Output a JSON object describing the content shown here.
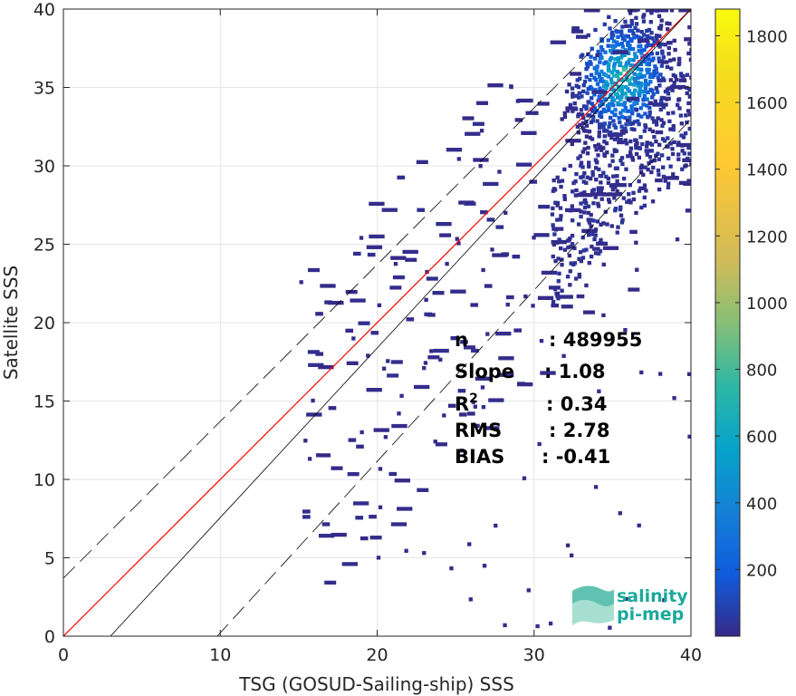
{
  "chart_data": {
    "type": "heatmap",
    "xlabel": "TSG (GOSUD-Sailing-ship) SSS",
    "ylabel": "Satellite SSS",
    "xlim": [
      0,
      40
    ],
    "ylim": [
      0,
      40
    ],
    "xticks": [
      "0",
      "10",
      "20",
      "30",
      "40"
    ],
    "yticks": [
      "0",
      "5",
      "10",
      "15",
      "20",
      "25",
      "30",
      "35",
      "40"
    ],
    "grid": true,
    "colorbar": {
      "range": [
        0,
        1880
      ],
      "ticks": [
        "200",
        "400",
        "600",
        "800",
        "1000",
        "1200",
        "1400",
        "1600",
        "1800"
      ],
      "colormap": "parula"
    },
    "lines": [
      {
        "type": "identity",
        "x": [
          0,
          40
        ],
        "y": [
          0,
          40
        ],
        "color": "#ff0000"
      },
      {
        "type": "fit",
        "x": [
          3,
          40
        ],
        "y": [
          0,
          40
        ],
        "color": "#000000"
      },
      {
        "type": "upper-bound",
        "x": [
          0,
          36.3
        ],
        "y": [
          3.7,
          40
        ],
        "color": "#000000",
        "dash": true
      },
      {
        "type": "lower-bound",
        "x": [
          9.8,
          40
        ],
        "y": [
          0,
          33
        ],
        "color": "#000000",
        "dash": true
      }
    ],
    "density_core": {
      "x_center": 35.5,
      "y_center": 35.5,
      "peak_count": 700
    },
    "stats": [
      {
        "label": "n",
        "value": ": 489955"
      },
      {
        "label": "Slope",
        "value": ": 1.08"
      },
      {
        "label": "R",
        "sup": "2",
        "value": ": 0.34"
      },
      {
        "label": "RMS",
        "value": ": 2.78"
      },
      {
        "label": "BIAS",
        "value": ": -0.41"
      }
    ]
  },
  "logo": {
    "line1": "salinity",
    "line2": "pi-mep"
  }
}
